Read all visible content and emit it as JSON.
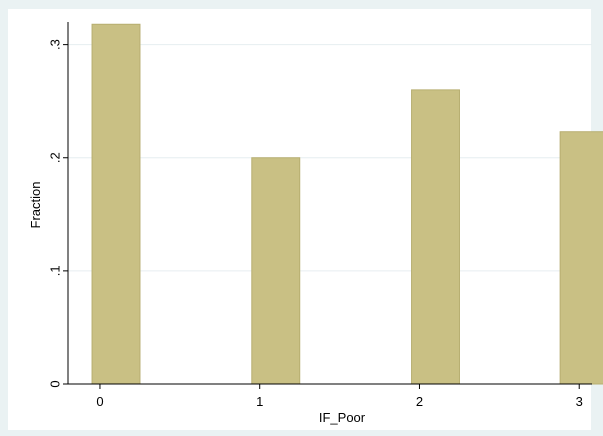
{
  "chart_data": {
    "type": "bar",
    "title": "",
    "xlabel": "IF_Poor",
    "ylabel": "Fraction",
    "x": [
      0,
      1,
      2,
      3
    ],
    "values": [
      0.318,
      0.2,
      0.26,
      0.223
    ],
    "xlim": [
      -0.2,
      3.08
    ],
    "ylim": [
      0,
      0.32
    ],
    "x_ticks": [
      {
        "value": 0,
        "label": "0"
      },
      {
        "value": 1,
        "label": "1"
      },
      {
        "value": 2,
        "label": "2"
      },
      {
        "value": 3,
        "label": "3"
      }
    ],
    "y_ticks": [
      {
        "value": 0,
        "label": "0"
      },
      {
        "value": 0.1,
        "label": ".1"
      },
      {
        "value": 0.2,
        "label": ".2"
      },
      {
        "value": 0.3,
        "label": ".3"
      }
    ],
    "bar_width_data": 0.3,
    "grid": true,
    "colors": {
      "bar_fill": "#c9c084",
      "bar_stroke": "#b7ae70",
      "plot_background": "#ffffff",
      "page_background": "#eaf2f3",
      "grid": "#e6eef0",
      "axis": "#000000"
    }
  }
}
